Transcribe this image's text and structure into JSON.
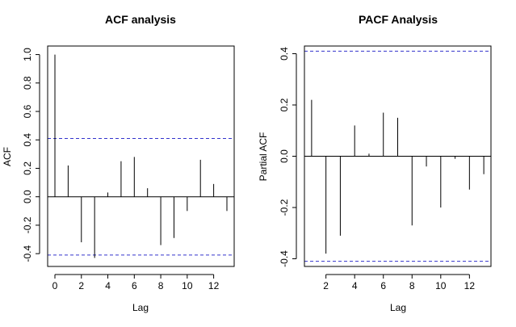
{
  "chart_data": [
    {
      "type": "bar",
      "subtype": "autocorrelation-spikes",
      "title": "ACF analysis",
      "xlabel": "Lag",
      "ylabel": "ACF",
      "x": [
        0,
        1,
        2,
        3,
        4,
        5,
        6,
        7,
        8,
        9,
        10,
        11,
        12,
        13
      ],
      "values": [
        1.0,
        0.22,
        -0.32,
        -0.43,
        0.03,
        0.25,
        0.28,
        0.06,
        -0.34,
        -0.29,
        -0.1,
        0.26,
        0.09,
        -0.1
      ],
      "confidence_bounds": [
        0.41,
        -0.41
      ],
      "xlim": [
        -0.55,
        13.55
      ],
      "ylim": [
        -0.49,
        1.06
      ],
      "xticks": [
        0,
        2,
        4,
        6,
        8,
        10,
        12
      ],
      "yticks": [
        -0.4,
        -0.2,
        0.0,
        0.2,
        0.4,
        0.6,
        0.8,
        1.0
      ],
      "ytick_labels": [
        "-0.4",
        "-0.2",
        "0.0",
        "0.2",
        "0.4",
        "0.6",
        "0.8",
        "1.0"
      ],
      "zero_line": true,
      "grid": false,
      "bound_color": "#3333cc"
    },
    {
      "type": "bar",
      "subtype": "autocorrelation-spikes",
      "title": "PACF Analysis",
      "xlabel": "Lag",
      "ylabel": "Partial ACF",
      "x": [
        1,
        2,
        3,
        4,
        5,
        6,
        7,
        8,
        9,
        10,
        11,
        12,
        13
      ],
      "values": [
        0.22,
        -0.38,
        -0.31,
        0.12,
        0.01,
        0.17,
        0.15,
        -0.27,
        -0.04,
        -0.2,
        -0.01,
        -0.13,
        -0.07
      ],
      "confidence_bounds": [
        0.41,
        -0.41
      ],
      "xlim": [
        0.5,
        13.5
      ],
      "ylim": [
        -0.43,
        0.43
      ],
      "xticks": [
        2,
        4,
        6,
        8,
        10,
        12
      ],
      "yticks": [
        -0.4,
        -0.2,
        0.0,
        0.2,
        0.4
      ],
      "ytick_labels": [
        "-0.4",
        "-0.2",
        "0.0",
        "0.2",
        "0.4"
      ],
      "zero_line": true,
      "grid": false,
      "bound_color": "#3333cc"
    }
  ]
}
